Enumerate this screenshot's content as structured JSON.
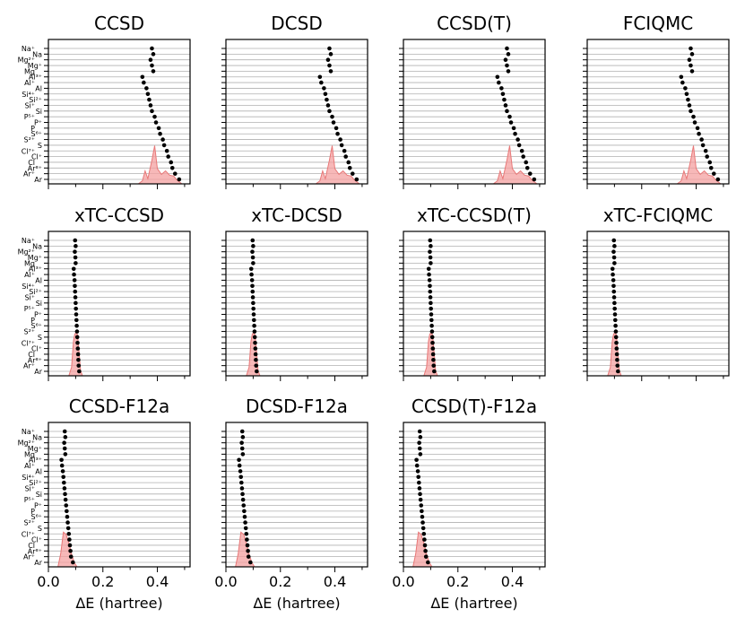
{
  "chart_data": {
    "type": "scatter",
    "layout": "grid 3 rows x 4 columns, shared axes",
    "xlabel": "ΔE (hartree)",
    "xlim": [
      0.0,
      0.52
    ],
    "xticks": [
      0.0,
      0.2,
      0.4
    ],
    "xtick_labels": [
      "0.0",
      "0.2",
      "0.4"
    ],
    "xtick_minor_step": 0.1,
    "grid": "horizontal lines at each system",
    "marker_color": "#000000",
    "density_fill_color": "#f4a0a0",
    "density_line_color": "#e87878",
    "systems": [
      "Na+",
      "Na",
      "Mg2+",
      "Mg+",
      "Mg",
      "Al3+",
      "Al+",
      "Al",
      "Si4+",
      "Si2+",
      "Si+",
      "Si",
      "P5+",
      "P+",
      "P",
      "S6+",
      "S2+",
      "S",
      "Cl7+",
      "Cl+",
      "Cl",
      "Ar8+",
      "Ar+",
      "Ar"
    ],
    "ytick_labels": [
      {
        "index": 0,
        "label": "Na⁺"
      },
      {
        "index": 1,
        "label": "Na"
      },
      {
        "index": 2,
        "label": "Mg²⁺"
      },
      {
        "index": 3,
        "label": "Mg⁺"
      },
      {
        "index": 4,
        "label": "Mg"
      },
      {
        "index": 5,
        "label": "Al³⁺"
      },
      {
        "index": 6,
        "label": "Al⁺"
      },
      {
        "index": 7,
        "label": "Al"
      },
      {
        "index": 8,
        "label": "Si⁴⁺"
      },
      {
        "index": 9,
        "label": "Si²⁺"
      },
      {
        "index": 10,
        "label": "Si⁺"
      },
      {
        "index": 11,
        "label": "Si"
      },
      {
        "index": 12,
        "label": "P⁵⁺"
      },
      {
        "index": 13,
        "label": "P⁺"
      },
      {
        "index": 14,
        "label": "P"
      },
      {
        "index": 15,
        "label": "S⁶⁺"
      },
      {
        "index": 16,
        "label": "S²⁺"
      },
      {
        "index": 17,
        "label": "S"
      },
      {
        "index": 18,
        "label": "Cl⁷⁺"
      },
      {
        "index": 19,
        "label": "Cl⁺"
      },
      {
        "index": 20,
        "label": "Cl"
      },
      {
        "index": 21,
        "label": "Ar⁸⁺"
      },
      {
        "index": 22,
        "label": "Ar⁺"
      },
      {
        "index": 23,
        "label": "Ar"
      }
    ],
    "panels": [
      {
        "title": "CCSD",
        "row": 0,
        "col": 0,
        "show_ylabels": true,
        "show_xlabels": false,
        "values": [
          0.38,
          0.385,
          0.375,
          0.38,
          0.385,
          0.345,
          0.35,
          0.36,
          0.365,
          0.37,
          0.375,
          0.38,
          0.39,
          0.395,
          0.405,
          0.41,
          0.42,
          0.425,
          0.435,
          0.44,
          0.45,
          0.455,
          0.465,
          0.48
        ],
        "density": [
          [
            0.33,
            0
          ],
          [
            0.345,
            0.07
          ],
          [
            0.355,
            0.3
          ],
          [
            0.365,
            0.12
          ],
          [
            0.38,
            0.55
          ],
          [
            0.39,
            0.88
          ],
          [
            0.4,
            0.35
          ],
          [
            0.415,
            0.22
          ],
          [
            0.43,
            0.3
          ],
          [
            0.445,
            0.2
          ],
          [
            0.46,
            0.18
          ],
          [
            0.47,
            0.1
          ],
          [
            0.49,
            0
          ]
        ]
      },
      {
        "title": "DCSD",
        "row": 0,
        "col": 1,
        "show_ylabels": false,
        "show_xlabels": false,
        "values": [
          0.38,
          0.385,
          0.375,
          0.38,
          0.385,
          0.345,
          0.35,
          0.36,
          0.365,
          0.37,
          0.375,
          0.38,
          0.39,
          0.395,
          0.405,
          0.41,
          0.42,
          0.425,
          0.435,
          0.44,
          0.45,
          0.455,
          0.465,
          0.48
        ],
        "density": [
          [
            0.33,
            0
          ],
          [
            0.345,
            0.07
          ],
          [
            0.355,
            0.3
          ],
          [
            0.365,
            0.12
          ],
          [
            0.38,
            0.55
          ],
          [
            0.39,
            0.88
          ],
          [
            0.4,
            0.35
          ],
          [
            0.415,
            0.22
          ],
          [
            0.43,
            0.3
          ],
          [
            0.445,
            0.2
          ],
          [
            0.46,
            0.18
          ],
          [
            0.47,
            0.1
          ],
          [
            0.49,
            0
          ]
        ]
      },
      {
        "title": "CCSD(T)",
        "row": 0,
        "col": 2,
        "show_ylabels": false,
        "show_xlabels": false,
        "values": [
          0.38,
          0.385,
          0.375,
          0.38,
          0.385,
          0.345,
          0.35,
          0.36,
          0.365,
          0.37,
          0.375,
          0.38,
          0.39,
          0.395,
          0.405,
          0.41,
          0.42,
          0.425,
          0.435,
          0.44,
          0.45,
          0.455,
          0.465,
          0.48
        ],
        "density": [
          [
            0.33,
            0
          ],
          [
            0.345,
            0.07
          ],
          [
            0.355,
            0.3
          ],
          [
            0.365,
            0.12
          ],
          [
            0.38,
            0.55
          ],
          [
            0.39,
            0.88
          ],
          [
            0.4,
            0.35
          ],
          [
            0.415,
            0.22
          ],
          [
            0.43,
            0.3
          ],
          [
            0.445,
            0.2
          ],
          [
            0.46,
            0.18
          ],
          [
            0.47,
            0.1
          ],
          [
            0.49,
            0
          ]
        ]
      },
      {
        "title": "FCIQMC",
        "row": 0,
        "col": 3,
        "show_ylabels": false,
        "show_xlabels": false,
        "values": [
          0.38,
          0.385,
          0.375,
          0.38,
          0.385,
          0.345,
          0.35,
          0.36,
          0.365,
          0.37,
          0.375,
          0.38,
          0.39,
          0.395,
          0.405,
          0.41,
          0.42,
          0.425,
          0.435,
          0.44,
          0.45,
          0.455,
          0.465,
          0.48
        ],
        "density": [
          [
            0.33,
            0
          ],
          [
            0.345,
            0.07
          ],
          [
            0.355,
            0.3
          ],
          [
            0.365,
            0.12
          ],
          [
            0.38,
            0.55
          ],
          [
            0.39,
            0.88
          ],
          [
            0.4,
            0.35
          ],
          [
            0.415,
            0.22
          ],
          [
            0.43,
            0.3
          ],
          [
            0.445,
            0.2
          ],
          [
            0.46,
            0.18
          ],
          [
            0.47,
            0.1
          ],
          [
            0.49,
            0
          ]
        ]
      },
      {
        "title": "xTC-CCSD",
        "row": 1,
        "col": 0,
        "show_ylabels": true,
        "show_xlabels": false,
        "values": [
          0.098,
          0.1,
          0.097,
          0.099,
          0.1,
          0.093,
          0.094,
          0.096,
          0.097,
          0.098,
          0.099,
          0.1,
          0.101,
          0.102,
          0.103,
          0.104,
          0.105,
          0.106,
          0.107,
          0.108,
          0.109,
          0.11,
          0.111,
          0.113
        ],
        "density": [
          [
            0.075,
            0
          ],
          [
            0.085,
            0.2
          ],
          [
            0.092,
            0.8
          ],
          [
            0.097,
            0.97
          ],
          [
            0.102,
            0.98
          ],
          [
            0.107,
            0.95
          ],
          [
            0.112,
            0.6
          ],
          [
            0.118,
            0.12
          ],
          [
            0.125,
            0
          ]
        ]
      },
      {
        "title": "xTC-DCSD",
        "row": 1,
        "col": 1,
        "show_ylabels": false,
        "show_xlabels": false,
        "values": [
          0.098,
          0.1,
          0.097,
          0.099,
          0.1,
          0.093,
          0.094,
          0.096,
          0.097,
          0.098,
          0.099,
          0.1,
          0.101,
          0.102,
          0.103,
          0.104,
          0.105,
          0.106,
          0.107,
          0.108,
          0.109,
          0.11,
          0.111,
          0.113
        ],
        "density": [
          [
            0.075,
            0
          ],
          [
            0.085,
            0.2
          ],
          [
            0.092,
            0.8
          ],
          [
            0.097,
            0.97
          ],
          [
            0.102,
            0.98
          ],
          [
            0.107,
            0.95
          ],
          [
            0.112,
            0.6
          ],
          [
            0.118,
            0.12
          ],
          [
            0.125,
            0
          ]
        ]
      },
      {
        "title": "xTC-CCSD(T)",
        "row": 1,
        "col": 2,
        "show_ylabels": false,
        "show_xlabels": false,
        "values": [
          0.098,
          0.1,
          0.097,
          0.099,
          0.1,
          0.093,
          0.094,
          0.096,
          0.097,
          0.098,
          0.099,
          0.1,
          0.101,
          0.102,
          0.103,
          0.104,
          0.105,
          0.106,
          0.107,
          0.108,
          0.109,
          0.11,
          0.111,
          0.113
        ],
        "density": [
          [
            0.075,
            0
          ],
          [
            0.085,
            0.2
          ],
          [
            0.092,
            0.8
          ],
          [
            0.097,
            0.97
          ],
          [
            0.102,
            0.98
          ],
          [
            0.107,
            0.95
          ],
          [
            0.112,
            0.6
          ],
          [
            0.118,
            0.12
          ],
          [
            0.125,
            0
          ]
        ]
      },
      {
        "title": "xTC-FCIQMC",
        "row": 1,
        "col": 3,
        "show_ylabels": false,
        "show_xlabels": false,
        "values": [
          0.098,
          0.1,
          0.097,
          0.099,
          0.1,
          0.093,
          0.094,
          0.096,
          0.097,
          0.098,
          0.099,
          0.1,
          0.101,
          0.102,
          0.103,
          0.104,
          0.105,
          0.106,
          0.107,
          0.108,
          0.109,
          0.11,
          0.111,
          0.113
        ],
        "density": [
          [
            0.075,
            0
          ],
          [
            0.085,
            0.2
          ],
          [
            0.092,
            0.8
          ],
          [
            0.097,
            0.97
          ],
          [
            0.102,
            0.98
          ],
          [
            0.107,
            0.95
          ],
          [
            0.112,
            0.6
          ],
          [
            0.118,
            0.12
          ],
          [
            0.125,
            0
          ]
        ]
      },
      {
        "title": "CCSD-F12a",
        "row": 2,
        "col": 0,
        "show_ylabels": true,
        "show_xlabels": true,
        "values": [
          0.06,
          0.062,
          0.058,
          0.06,
          0.062,
          0.048,
          0.05,
          0.053,
          0.055,
          0.057,
          0.059,
          0.061,
          0.063,
          0.065,
          0.067,
          0.069,
          0.071,
          0.073,
          0.075,
          0.077,
          0.079,
          0.081,
          0.083,
          0.09
        ],
        "density": [
          [
            0.035,
            0
          ],
          [
            0.045,
            0.3
          ],
          [
            0.055,
            0.8
          ],
          [
            0.065,
            0.75
          ],
          [
            0.075,
            0.55
          ],
          [
            0.085,
            0.3
          ],
          [
            0.095,
            0.1
          ],
          [
            0.105,
            0
          ]
        ]
      },
      {
        "title": "DCSD-F12a",
        "row": 2,
        "col": 1,
        "show_ylabels": false,
        "show_xlabels": true,
        "values": [
          0.06,
          0.062,
          0.058,
          0.06,
          0.062,
          0.048,
          0.05,
          0.053,
          0.055,
          0.057,
          0.059,
          0.061,
          0.063,
          0.065,
          0.067,
          0.069,
          0.071,
          0.073,
          0.075,
          0.077,
          0.079,
          0.081,
          0.083,
          0.09
        ],
        "density": [
          [
            0.035,
            0
          ],
          [
            0.045,
            0.3
          ],
          [
            0.055,
            0.8
          ],
          [
            0.065,
            0.75
          ],
          [
            0.075,
            0.55
          ],
          [
            0.085,
            0.3
          ],
          [
            0.095,
            0.1
          ],
          [
            0.105,
            0
          ]
        ]
      },
      {
        "title": "CCSD(T)-F12a",
        "row": 2,
        "col": 2,
        "show_ylabels": false,
        "show_xlabels": true,
        "values": [
          0.06,
          0.062,
          0.058,
          0.06,
          0.062,
          0.048,
          0.05,
          0.053,
          0.055,
          0.057,
          0.059,
          0.061,
          0.063,
          0.065,
          0.067,
          0.069,
          0.071,
          0.073,
          0.075,
          0.077,
          0.079,
          0.081,
          0.083,
          0.09
        ],
        "density": [
          [
            0.035,
            0
          ],
          [
            0.045,
            0.3
          ],
          [
            0.055,
            0.8
          ],
          [
            0.065,
            0.75
          ],
          [
            0.075,
            0.55
          ],
          [
            0.085,
            0.3
          ],
          [
            0.095,
            0.1
          ],
          [
            0.105,
            0
          ]
        ]
      }
    ]
  }
}
